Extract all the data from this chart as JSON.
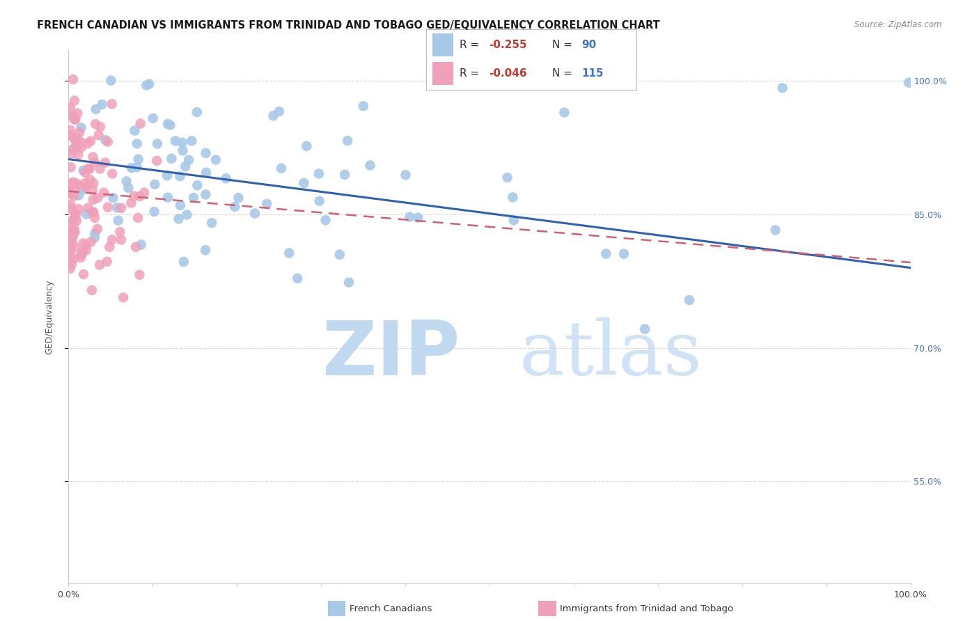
{
  "title": "FRENCH CANADIAN VS IMMIGRANTS FROM TRINIDAD AND TOBAGO GED/EQUIVALENCY CORRELATION CHART",
  "source": "Source: ZipAtlas.com",
  "ylabel": "GED/Equivalency",
  "xlim": [
    0,
    1
  ],
  "ylim": [
    0.435,
    1.035
  ],
  "yticks": [
    0.55,
    0.7,
    0.85,
    1.0
  ],
  "ytick_labels": [
    "55.0%",
    "70.0%",
    "85.0%",
    "100.0%"
  ],
  "blue_color": "#a8c8e8",
  "pink_color": "#f0a0b8",
  "blue_line_color": "#3060b0",
  "pink_line_color": "#d06070",
  "background_color": "#ffffff",
  "grid_color": "#d8d8d8",
  "title_fontsize": 10.5,
  "axis_label_fontsize": 9,
  "tick_fontsize": 9,
  "right_tick_color": "#4472c4",
  "watermark_zip_color": "#c0d8f0",
  "watermark_atlas_color": "#c8dff5",
  "blue_line_start_y": 0.912,
  "blue_line_end_y": 0.79,
  "pink_line_start_y": 0.876,
  "pink_line_end_y": 0.796,
  "legend_r1_val": "-0.255",
  "legend_n1_val": "90",
  "legend_r2_val": "-0.046",
  "legend_n2_val": "115"
}
